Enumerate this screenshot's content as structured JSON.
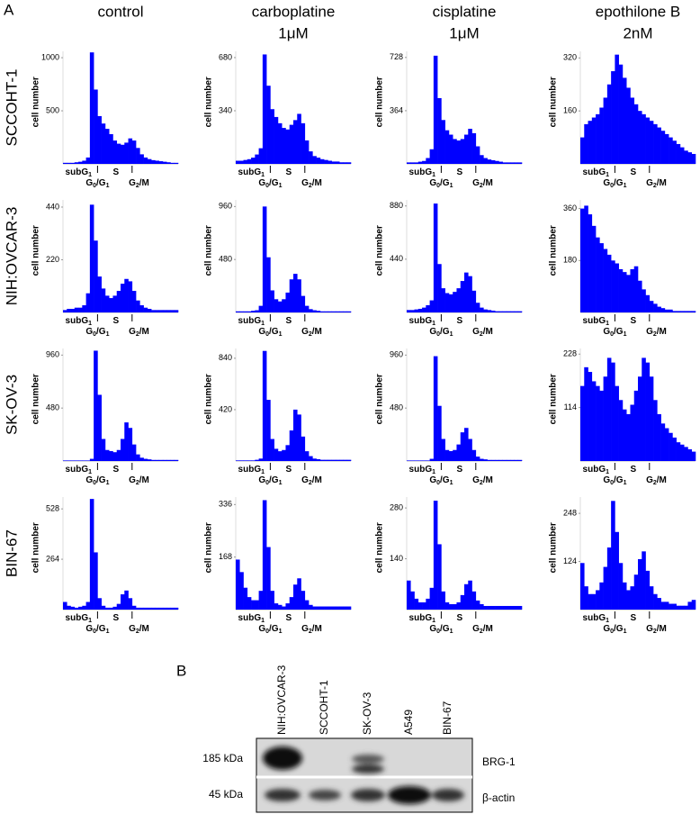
{
  "panel_a": {
    "label": "A",
    "columns": [
      [
        "control"
      ],
      [
        "carboplatine",
        "1μM"
      ],
      [
        "cisplatine",
        "1μM"
      ],
      [
        "epothilone B",
        "2nM"
      ]
    ],
    "rows": [
      "SCCOHT-1",
      "NIH:OVCAR-3",
      "SK-OV-3",
      "BIN-67"
    ],
    "phase_labels": [
      [
        "subG",
        "1"
      ],
      [
        "G",
        "0",
        "/G",
        "1"
      ],
      [
        "S"
      ],
      [
        "G",
        "2",
        "/M"
      ]
    ]
  },
  "chart_data": [
    {
      "type": "bar",
      "ylabel": "cell number",
      "color": "#0000ff",
      "ylim": [
        0,
        1060
      ],
      "yticks": [
        500,
        1000
      ],
      "values": [
        10,
        10,
        10,
        15,
        20,
        30,
        60,
        1050,
        700,
        450,
        380,
        330,
        280,
        220,
        190,
        180,
        200,
        240,
        220,
        150,
        90,
        60,
        45,
        35,
        30,
        25,
        20,
        15,
        10,
        10
      ]
    },
    {
      "type": "bar",
      "ylabel": "cell number",
      "color": "#0000ff",
      "ylim": [
        0,
        720
      ],
      "yticks": [
        340,
        680
      ],
      "values": [
        20,
        20,
        25,
        30,
        40,
        60,
        100,
        700,
        500,
        350,
        300,
        260,
        230,
        220,
        250,
        280,
        320,
        260,
        150,
        80,
        50,
        40,
        30,
        25,
        20,
        15,
        15,
        10,
        10,
        10
      ]
    },
    {
      "type": "bar",
      "ylabel": "cell number",
      "color": "#0000ff",
      "ylim": [
        0,
        770
      ],
      "yticks": [
        364,
        728
      ],
      "values": [
        10,
        10,
        10,
        15,
        20,
        40,
        100,
        740,
        450,
        300,
        230,
        200,
        170,
        160,
        170,
        200,
        240,
        210,
        120,
        60,
        40,
        30,
        25,
        20,
        15,
        10,
        10,
        10,
        10,
        10
      ]
    },
    {
      "type": "bar",
      "ylabel": "cell number",
      "color": "#0000ff",
      "ylim": [
        0,
        340
      ],
      "yticks": [
        160,
        320
      ],
      "values": [
        80,
        120,
        130,
        140,
        150,
        170,
        200,
        240,
        280,
        330,
        300,
        260,
        230,
        200,
        180,
        160,
        150,
        140,
        130,
        120,
        110,
        100,
        90,
        80,
        70,
        60,
        50,
        40,
        35,
        30
      ]
    },
    {
      "type": "bar",
      "ylabel": "cell number",
      "color": "#0000ff",
      "ylim": [
        0,
        470
      ],
      "yticks": [
        220,
        440
      ],
      "values": [
        10,
        15,
        15,
        20,
        20,
        30,
        80,
        450,
        300,
        150,
        100,
        70,
        60,
        70,
        90,
        120,
        140,
        130,
        90,
        50,
        30,
        20,
        15,
        10,
        10,
        10,
        10,
        10,
        10,
        10
      ]
    },
    {
      "type": "bar",
      "ylabel": "cell number",
      "color": "#0000ff",
      "ylim": [
        0,
        1020
      ],
      "yticks": [
        480,
        960
      ],
      "values": [
        10,
        10,
        10,
        10,
        15,
        20,
        60,
        960,
        500,
        200,
        120,
        100,
        120,
        180,
        300,
        350,
        300,
        150,
        60,
        30,
        20,
        15,
        10,
        10,
        10,
        10,
        10,
        10,
        10,
        10
      ]
    },
    {
      "type": "bar",
      "ylabel": "cell number",
      "color": "#0000ff",
      "ylim": [
        0,
        930
      ],
      "yticks": [
        440,
        880
      ],
      "values": [
        20,
        20,
        25,
        30,
        40,
        60,
        100,
        900,
        400,
        200,
        160,
        150,
        170,
        200,
        260,
        330,
        300,
        180,
        80,
        40,
        25,
        20,
        15,
        10,
        10,
        10,
        10,
        10,
        10,
        10
      ]
    },
    {
      "type": "bar",
      "ylabel": "cell number",
      "color": "#0000ff",
      "ylim": [
        0,
        390
      ],
      "yticks": [
        180,
        360
      ],
      "values": [
        360,
        370,
        340,
        300,
        260,
        240,
        220,
        200,
        180,
        170,
        150,
        140,
        130,
        150,
        160,
        110,
        80,
        60,
        40,
        30,
        20,
        15,
        10,
        10,
        5,
        5,
        5,
        5,
        5,
        5
      ]
    },
    {
      "type": "bar",
      "ylabel": "cell number",
      "color": "#0000ff",
      "ylim": [
        0,
        1020
      ],
      "yticks": [
        480,
        960
      ],
      "values": [
        5,
        5,
        5,
        5,
        5,
        5,
        5,
        20,
        1000,
        600,
        200,
        100,
        90,
        80,
        100,
        200,
        350,
        300,
        150,
        60,
        30,
        20,
        15,
        10,
        10,
        10,
        10,
        10,
        10,
        10
      ]
    },
    {
      "type": "bar",
      "ylabel": "cell number",
      "color": "#0000ff",
      "ylim": [
        0,
        920
      ],
      "yticks": [
        420,
        840
      ],
      "values": [
        5,
        5,
        5,
        5,
        5,
        10,
        20,
        900,
        500,
        180,
        100,
        80,
        90,
        130,
        250,
        420,
        380,
        200,
        80,
        40,
        20,
        15,
        10,
        10,
        10,
        10,
        10,
        10,
        10,
        10
      ]
    },
    {
      "type": "bar",
      "ylabel": "cell number",
      "color": "#0000ff",
      "ylim": [
        0,
        1020
      ],
      "yticks": [
        480,
        960
      ],
      "values": [
        5,
        5,
        5,
        5,
        5,
        5,
        20,
        950,
        500,
        200,
        100,
        90,
        100,
        150,
        260,
        300,
        200,
        100,
        40,
        20,
        15,
        10,
        10,
        10,
        10,
        10,
        10,
        10,
        10,
        10
      ]
    },
    {
      "type": "bar",
      "ylabel": "cell number",
      "color": "#0000ff",
      "ylim": [
        0,
        240
      ],
      "yticks": [
        114,
        228
      ],
      "values": [
        160,
        200,
        190,
        170,
        160,
        150,
        180,
        220,
        210,
        160,
        130,
        110,
        100,
        120,
        150,
        180,
        220,
        210,
        180,
        130,
        100,
        80,
        70,
        60,
        50,
        40,
        35,
        30,
        25,
        20
      ]
    },
    {
      "type": "bar",
      "ylabel": "cell number",
      "color": "#0000ff",
      "ylim": [
        0,
        590
      ],
      "yticks": [
        264,
        528
      ],
      "values": [
        40,
        20,
        15,
        10,
        15,
        20,
        40,
        580,
        300,
        60,
        20,
        10,
        10,
        15,
        30,
        80,
        100,
        60,
        20,
        10,
        10,
        10,
        10,
        10,
        10,
        10,
        10,
        10,
        10,
        10
      ]
    },
    {
      "type": "bar",
      "ylabel": "cell number",
      "color": "#0000ff",
      "ylim": [
        0,
        360
      ],
      "yticks": [
        168,
        336
      ],
      "values": [
        160,
        120,
        70,
        40,
        30,
        30,
        60,
        350,
        200,
        60,
        20,
        15,
        10,
        20,
        40,
        80,
        100,
        60,
        30,
        15,
        10,
        10,
        10,
        10,
        10,
        10,
        10,
        10,
        10,
        10
      ]
    },
    {
      "type": "bar",
      "ylabel": "cell number",
      "color": "#0000ff",
      "ylim": [
        0,
        310
      ],
      "yticks": [
        140,
        280
      ],
      "values": [
        80,
        50,
        30,
        20,
        20,
        30,
        60,
        300,
        180,
        50,
        20,
        15,
        15,
        20,
        40,
        70,
        80,
        50,
        25,
        15,
        10,
        10,
        10,
        10,
        10,
        10,
        10,
        10,
        10,
        10
      ]
    },
    {
      "type": "bar",
      "ylabel": "cell number",
      "color": "#0000ff",
      "ylim": [
        0,
        290
      ],
      "yticks": [
        124,
        248
      ],
      "values": [
        120,
        60,
        40,
        40,
        50,
        70,
        110,
        160,
        280,
        200,
        120,
        70,
        50,
        60,
        90,
        130,
        150,
        100,
        60,
        40,
        30,
        20,
        20,
        15,
        15,
        10,
        10,
        10,
        20,
        25
      ]
    }
  ],
  "panel_b": {
    "label": "B",
    "lanes": [
      "NIH:OVCAR-3",
      "SCCOHT-1",
      "SK-OV-3",
      "A549",
      "BIN-67"
    ],
    "markers": [
      "185 kDa",
      "45 kDa"
    ],
    "proteins": [
      "BRG-1",
      "β-actin"
    ]
  }
}
